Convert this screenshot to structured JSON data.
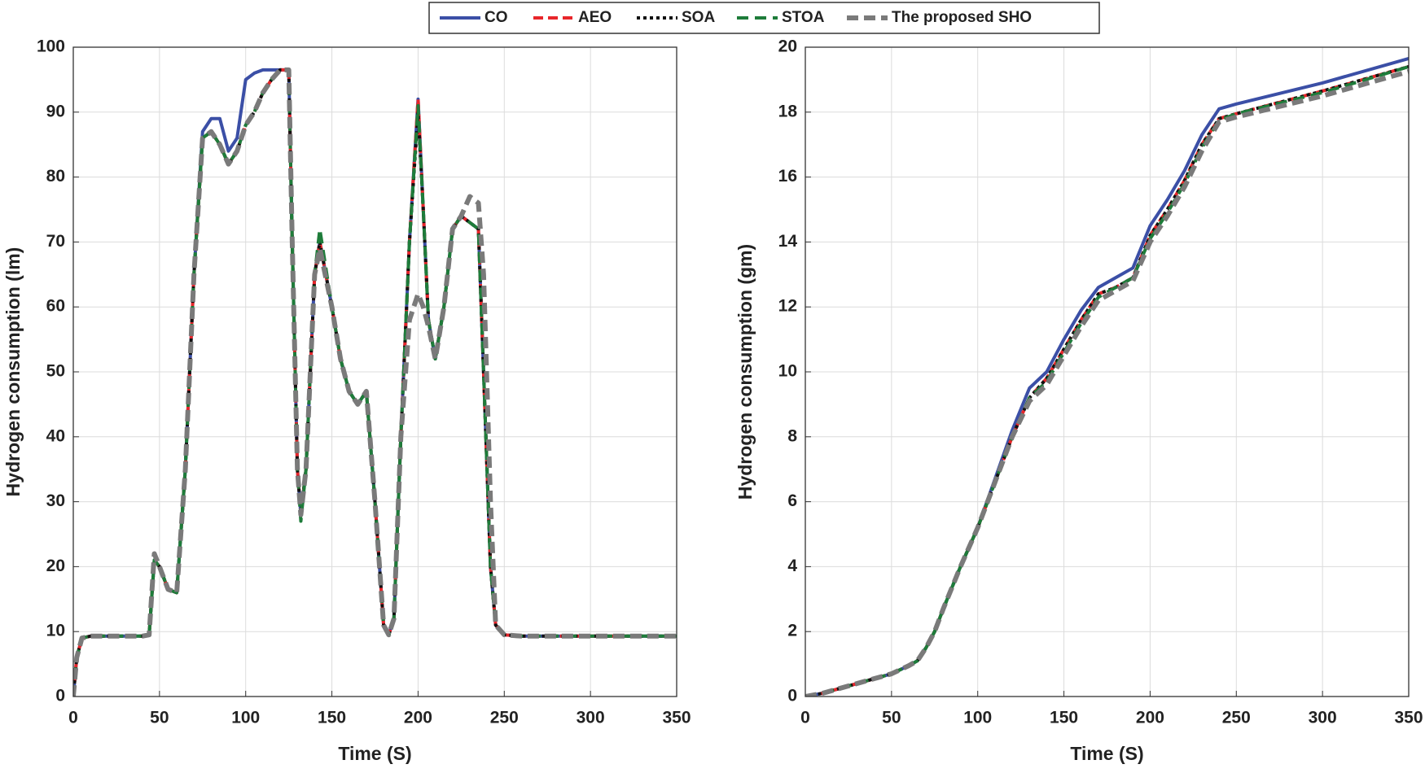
{
  "legend": {
    "entries": [
      {
        "name": "CO",
        "color": "#3b4fa6",
        "dash": "none",
        "width": 4
      },
      {
        "name": "AEO",
        "color": "#e8262a",
        "dash": "12 6",
        "width": 4
      },
      {
        "name": "SOA",
        "color": "#111111",
        "dash": "4 4",
        "width": 4
      },
      {
        "name": "STOA",
        "color": "#1e7c3a",
        "dash": "14 8",
        "width": 4
      },
      {
        "name": "The proposed SHO",
        "color": "#7a7a7a",
        "dash": "14 7",
        "width": 6
      }
    ]
  },
  "chart_data": [
    {
      "type": "line",
      "x_label": "Time (S)",
      "y_label": "Hydrogen consumption (lm)",
      "xlim": [
        0,
        350
      ],
      "ylim": [
        0,
        100
      ],
      "xticks": [
        0,
        50,
        100,
        150,
        200,
        250,
        300,
        350
      ],
      "yticks": [
        0,
        10,
        20,
        30,
        40,
        50,
        60,
        70,
        80,
        90,
        100
      ],
      "grid": true,
      "x": [
        0,
        2,
        5,
        10,
        20,
        30,
        40,
        44,
        47,
        50,
        55,
        60,
        65,
        70,
        75,
        80,
        85,
        90,
        95,
        100,
        105,
        110,
        115,
        120,
        125,
        127,
        130,
        132,
        135,
        140,
        143,
        150,
        155,
        160,
        165,
        170,
        175,
        180,
        183,
        186,
        190,
        195,
        200,
        203,
        206,
        210,
        215,
        220,
        225,
        230,
        235,
        238,
        242,
        245,
        250,
        260,
        300,
        350
      ],
      "series": [
        {
          "values": [
            0,
            6,
            9,
            9.3,
            9.3,
            9.3,
            9.3,
            9.5,
            21,
            20,
            16.5,
            16,
            35,
            65,
            87,
            89,
            89,
            84,
            86,
            95,
            96,
            96.5,
            96.5,
            96.5,
            96.5,
            70,
            35,
            28,
            35,
            65,
            70,
            60,
            52,
            47,
            45,
            47,
            30,
            11,
            9.5,
            12,
            40,
            70,
            92,
            75,
            58,
            52,
            60,
            72,
            74,
            73,
            72,
            50,
            20,
            11,
            9.5,
            9.3,
            9.3,
            9.3
          ]
        },
        {
          "values": [
            0,
            6,
            9,
            9.3,
            9.3,
            9.3,
            9.3,
            9.5,
            21,
            20,
            16.5,
            16,
            35,
            65,
            86,
            87,
            85,
            82,
            84,
            88,
            90,
            93,
            95,
            96.5,
            96.5,
            70,
            35,
            28,
            35,
            65,
            70,
            60,
            52,
            47,
            45,
            47,
            30,
            11,
            9.5,
            12,
            40,
            70,
            92,
            75,
            58,
            52,
            60,
            72,
            74,
            73,
            72,
            50,
            20,
            11,
            9.5,
            9.3,
            9.3,
            9.3
          ]
        },
        {
          "values": [
            0,
            6,
            9,
            9.3,
            9.3,
            9.3,
            9.3,
            9.5,
            21,
            20,
            16.5,
            16,
            35,
            65,
            86,
            87,
            85,
            82,
            84,
            88,
            90,
            93,
            95,
            96.5,
            96.5,
            70,
            35,
            28,
            35,
            65,
            70,
            60,
            52,
            47,
            45,
            47,
            30,
            11,
            9.5,
            12,
            40,
            70,
            90,
            75,
            58,
            52,
            60,
            72,
            74,
            73,
            72,
            50,
            20,
            11,
            9.5,
            9.3,
            9.3,
            9.3
          ]
        },
        {
          "values": [
            0,
            6,
            9,
            9.3,
            9.3,
            9.3,
            9.3,
            9.5,
            21,
            20,
            16.5,
            16,
            35,
            65,
            86,
            87,
            85,
            82,
            84,
            88,
            90,
            93,
            95,
            96.5,
            96.5,
            70,
            35,
            27,
            35,
            65,
            72,
            60,
            52,
            47,
            45,
            47,
            30,
            11,
            9.5,
            12,
            40,
            70,
            91,
            75,
            58,
            52,
            60,
            72,
            74,
            73,
            72,
            50,
            20,
            11,
            9.5,
            9.3,
            9.3,
            9.3
          ]
        },
        {
          "values": [
            0,
            6,
            9,
            9.3,
            9.3,
            9.3,
            9.3,
            9.5,
            22,
            20,
            16.5,
            16,
            35,
            65,
            86,
            87,
            85,
            82,
            84,
            88,
            90,
            93,
            95,
            96.5,
            96.5,
            70,
            35,
            28,
            35,
            65,
            69,
            60,
            52,
            47,
            45,
            47,
            30,
            11,
            9.5,
            12,
            40,
            58,
            62,
            60,
            57,
            52,
            60,
            72,
            74,
            77,
            76,
            65,
            30,
            11,
            9.5,
            9.3,
            9.3,
            9.3
          ]
        }
      ]
    },
    {
      "type": "line",
      "x_label": "Time (S)",
      "y_label": "Hydrogen consumption (gm)",
      "xlim": [
        0,
        350
      ],
      "ylim": [
        0,
        20
      ],
      "xticks": [
        0,
        50,
        100,
        150,
        200,
        250,
        300,
        350
      ],
      "yticks": [
        0,
        2,
        4,
        6,
        8,
        10,
        12,
        14,
        16,
        18,
        20
      ],
      "grid": true,
      "x": [
        0,
        10,
        20,
        30,
        40,
        50,
        60,
        65,
        70,
        75,
        80,
        90,
        100,
        110,
        120,
        130,
        140,
        150,
        160,
        170,
        180,
        190,
        200,
        210,
        220,
        230,
        240,
        250,
        300,
        350
      ],
      "series": [
        {
          "values": [
            0,
            0.1,
            0.25,
            0.4,
            0.55,
            0.7,
            0.95,
            1.1,
            1.5,
            2,
            2.7,
            4,
            5.2,
            6.7,
            8.2,
            9.5,
            10,
            11,
            11.9,
            12.6,
            12.9,
            13.2,
            14.5,
            15.3,
            16.2,
            17.3,
            18.1,
            18.25,
            18.9,
            19.65
          ]
        },
        {
          "values": [
            0,
            0.1,
            0.25,
            0.4,
            0.55,
            0.7,
            0.95,
            1.1,
            1.5,
            2,
            2.7,
            4,
            5.2,
            6.6,
            8.0,
            9.2,
            9.8,
            10.7,
            11.6,
            12.4,
            12.6,
            12.9,
            14.2,
            15.0,
            15.9,
            17.0,
            17.8,
            17.95,
            18.65,
            19.4
          ]
        },
        {
          "values": [
            0,
            0.1,
            0.25,
            0.4,
            0.55,
            0.7,
            0.95,
            1.1,
            1.5,
            2,
            2.7,
            4,
            5.2,
            6.6,
            8.0,
            9.2,
            9.8,
            10.7,
            11.6,
            12.4,
            12.6,
            12.9,
            14.2,
            15.0,
            15.9,
            17.0,
            17.8,
            17.95,
            18.65,
            19.4
          ]
        },
        {
          "values": [
            0,
            0.1,
            0.25,
            0.4,
            0.55,
            0.7,
            0.95,
            1.1,
            1.5,
            2,
            2.7,
            4,
            5.2,
            6.6,
            8.0,
            9.2,
            9.7,
            10.6,
            11.5,
            12.3,
            12.6,
            12.9,
            14.1,
            14.9,
            15.8,
            16.9,
            17.75,
            17.95,
            18.6,
            19.4
          ]
        },
        {
          "values": [
            0,
            0.1,
            0.25,
            0.4,
            0.55,
            0.7,
            0.95,
            1.1,
            1.5,
            2,
            2.7,
            4,
            5.2,
            6.6,
            8.0,
            9.1,
            9.6,
            10.5,
            11.4,
            12.2,
            12.5,
            12.8,
            14.0,
            14.8,
            15.7,
            16.8,
            17.7,
            17.85,
            18.5,
            19.25
          ]
        }
      ]
    }
  ]
}
